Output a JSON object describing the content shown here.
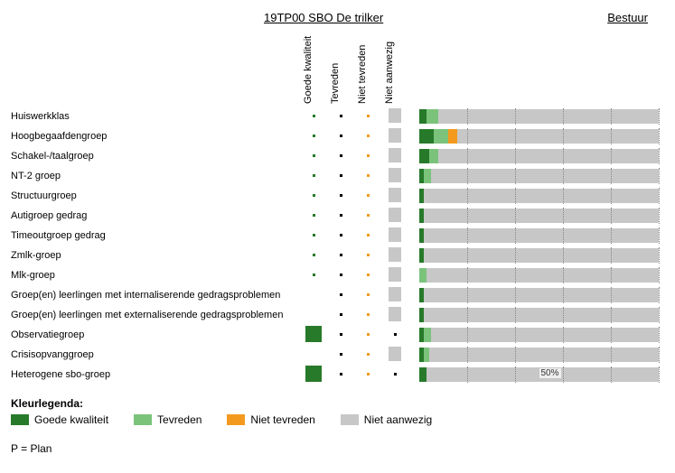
{
  "header": {
    "title": "19TP00 SBO De trilker",
    "bestuur": "Bestuur"
  },
  "columns": [
    {
      "key": "goede",
      "label": "Goede kwaliteit",
      "color": "#277a2a"
    },
    {
      "key": "tevreden",
      "label": "Tevreden",
      "color": "#7bc37b"
    },
    {
      "key": "niet_tevreden",
      "label": "Niet tevreden",
      "color": "#f39a1e"
    },
    {
      "key": "niet_aanwezig",
      "label": "Niet aanwezig",
      "color": "#c7c7c7"
    }
  ],
  "legend": {
    "title": "Kleurlegenda:",
    "items": [
      {
        "label": "Goede kwaliteit",
        "color": "#277a2a"
      },
      {
        "label": "Tevreden",
        "color": "#7bc37b"
      },
      {
        "label": "Niet tevreden",
        "color": "#f39a1e"
      },
      {
        "label": "Niet aanwezig",
        "color": "#c7c7c7"
      }
    ]
  },
  "footer": "P = Plan",
  "bar": {
    "gridlines": [
      20,
      40,
      60,
      80,
      100
    ],
    "bg_color": "#c7c7c7",
    "fifty_label": "50%"
  },
  "rows": [
    {
      "label": "Huiswerkklas",
      "cells": [
        {
          "t": "dot",
          "c": "#277a2a"
        },
        {
          "t": "dot",
          "c": "#000"
        },
        {
          "t": "dot",
          "c": "#f39a1e"
        },
        {
          "t": "bar",
          "c": "#c7c7c7"
        }
      ],
      "segments": [
        {
          "c": "#277a2a",
          "w": 3
        },
        {
          "c": "#7bc37b",
          "w": 5
        }
      ]
    },
    {
      "label": "Hoogbegaafdengroep",
      "cells": [
        {
          "t": "dot",
          "c": "#277a2a"
        },
        {
          "t": "dot",
          "c": "#000"
        },
        {
          "t": "dot",
          "c": "#f39a1e"
        },
        {
          "t": "bar",
          "c": "#c7c7c7"
        }
      ],
      "segments": [
        {
          "c": "#277a2a",
          "w": 6
        },
        {
          "c": "#7bc37b",
          "w": 6
        },
        {
          "c": "#f39a1e",
          "w": 4
        }
      ]
    },
    {
      "label": "Schakel-/taalgroep",
      "cells": [
        {
          "t": "dot",
          "c": "#277a2a"
        },
        {
          "t": "dot",
          "c": "#000"
        },
        {
          "t": "dot",
          "c": "#f39a1e"
        },
        {
          "t": "bar",
          "c": "#c7c7c7"
        }
      ],
      "segments": [
        {
          "c": "#277a2a",
          "w": 4
        },
        {
          "c": "#7bc37b",
          "w": 4
        }
      ]
    },
    {
      "label": "NT-2 groep",
      "cells": [
        {
          "t": "dot",
          "c": "#277a2a"
        },
        {
          "t": "dot",
          "c": "#000"
        },
        {
          "t": "dot",
          "c": "#f39a1e"
        },
        {
          "t": "bar",
          "c": "#c7c7c7"
        }
      ],
      "segments": [
        {
          "c": "#277a2a",
          "w": 2
        },
        {
          "c": "#7bc37b",
          "w": 3
        }
      ]
    },
    {
      "label": "Structuurgroep",
      "cells": [
        {
          "t": "dot",
          "c": "#277a2a"
        },
        {
          "t": "dot",
          "c": "#000"
        },
        {
          "t": "dot",
          "c": "#f39a1e"
        },
        {
          "t": "bar",
          "c": "#c7c7c7"
        }
      ],
      "segments": [
        {
          "c": "#277a2a",
          "w": 2
        }
      ]
    },
    {
      "label": "Autigroep gedrag",
      "cells": [
        {
          "t": "dot",
          "c": "#277a2a"
        },
        {
          "t": "dot",
          "c": "#000"
        },
        {
          "t": "dot",
          "c": "#f39a1e"
        },
        {
          "t": "bar",
          "c": "#c7c7c7"
        }
      ],
      "segments": [
        {
          "c": "#277a2a",
          "w": 2
        }
      ]
    },
    {
      "label": "Timeoutgroep gedrag",
      "cells": [
        {
          "t": "dot",
          "c": "#277a2a"
        },
        {
          "t": "dot",
          "c": "#000"
        },
        {
          "t": "dot",
          "c": "#f39a1e"
        },
        {
          "t": "bar",
          "c": "#c7c7c7"
        }
      ],
      "segments": [
        {
          "c": "#277a2a",
          "w": 2
        }
      ]
    },
    {
      "label": "Zmlk-groep",
      "cells": [
        {
          "t": "dot",
          "c": "#277a2a"
        },
        {
          "t": "dot",
          "c": "#000"
        },
        {
          "t": "dot",
          "c": "#f39a1e"
        },
        {
          "t": "bar",
          "c": "#c7c7c7"
        }
      ],
      "segments": [
        {
          "c": "#277a2a",
          "w": 2
        }
      ]
    },
    {
      "label": "Mlk-groep",
      "cells": [
        {
          "t": "dot",
          "c": "#277a2a"
        },
        {
          "t": "dot",
          "c": "#000"
        },
        {
          "t": "dot",
          "c": "#f39a1e"
        },
        {
          "t": "bar",
          "c": "#c7c7c7"
        }
      ],
      "segments": [
        {
          "c": "#7bc37b",
          "w": 3
        }
      ]
    },
    {
      "label": "Groep(en) leerlingen met internaliserende gedragsproblemen",
      "cells": [
        {
          "t": "none"
        },
        {
          "t": "dot",
          "c": "#000"
        },
        {
          "t": "dot",
          "c": "#f39a1e"
        },
        {
          "t": "bar",
          "c": "#c7c7c7"
        }
      ],
      "segments": [
        {
          "c": "#277a2a",
          "w": 2
        }
      ]
    },
    {
      "label": "Groep(en) leerlingen met externaliserende gedragsproblemen",
      "cells": [
        {
          "t": "none"
        },
        {
          "t": "dot",
          "c": "#000"
        },
        {
          "t": "dot",
          "c": "#f39a1e"
        },
        {
          "t": "bar",
          "c": "#c7c7c7"
        }
      ],
      "segments": [
        {
          "c": "#277a2a",
          "w": 2
        }
      ]
    },
    {
      "label": "Observatiegroep",
      "cells": [
        {
          "t": "block",
          "c": "#277a2a"
        },
        {
          "t": "dot",
          "c": "#000"
        },
        {
          "t": "dot",
          "c": "#f39a1e"
        },
        {
          "t": "dot",
          "c": "#000"
        }
      ],
      "segments": [
        {
          "c": "#277a2a",
          "w": 2
        },
        {
          "c": "#7bc37b",
          "w": 3
        }
      ]
    },
    {
      "label": "Crisisopvanggroep",
      "cells": [
        {
          "t": "none"
        },
        {
          "t": "dot",
          "c": "#000"
        },
        {
          "t": "dot",
          "c": "#f39a1e"
        },
        {
          "t": "bar",
          "c": "#c7c7c7"
        }
      ],
      "segments": [
        {
          "c": "#277a2a",
          "w": 2
        },
        {
          "c": "#7bc37b",
          "w": 2
        }
      ]
    },
    {
      "label": "Heterogene sbo-groep",
      "cells": [
        {
          "t": "block",
          "c": "#277a2a"
        },
        {
          "t": "dot",
          "c": "#000"
        },
        {
          "t": "dot",
          "c": "#f39a1e"
        },
        {
          "t": "dot",
          "c": "#000"
        }
      ],
      "segments": [
        {
          "c": "#277a2a",
          "w": 3
        }
      ],
      "show50": true
    }
  ]
}
